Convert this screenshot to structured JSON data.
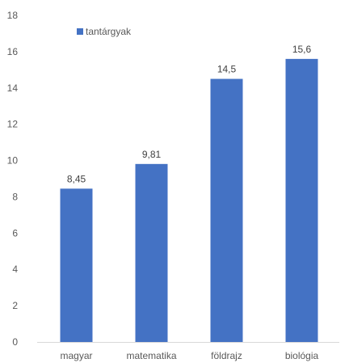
{
  "chart_data": {
    "type": "bar",
    "categories": [
      "magyar",
      "matematika",
      "földrajz",
      "biológia"
    ],
    "series": [
      {
        "name": "tantárgyak",
        "values": [
          8.45,
          9.81,
          14.5,
          15.6
        ],
        "value_labels": [
          "8,45",
          "9,81",
          "14,5",
          "15,6"
        ],
        "color": "#4472C4"
      }
    ],
    "ylim": [
      0,
      18
    ],
    "yticks": [
      0,
      2,
      4,
      6,
      8,
      10,
      12,
      14,
      16,
      18
    ],
    "grid": false,
    "legend_position": "top-left"
  }
}
